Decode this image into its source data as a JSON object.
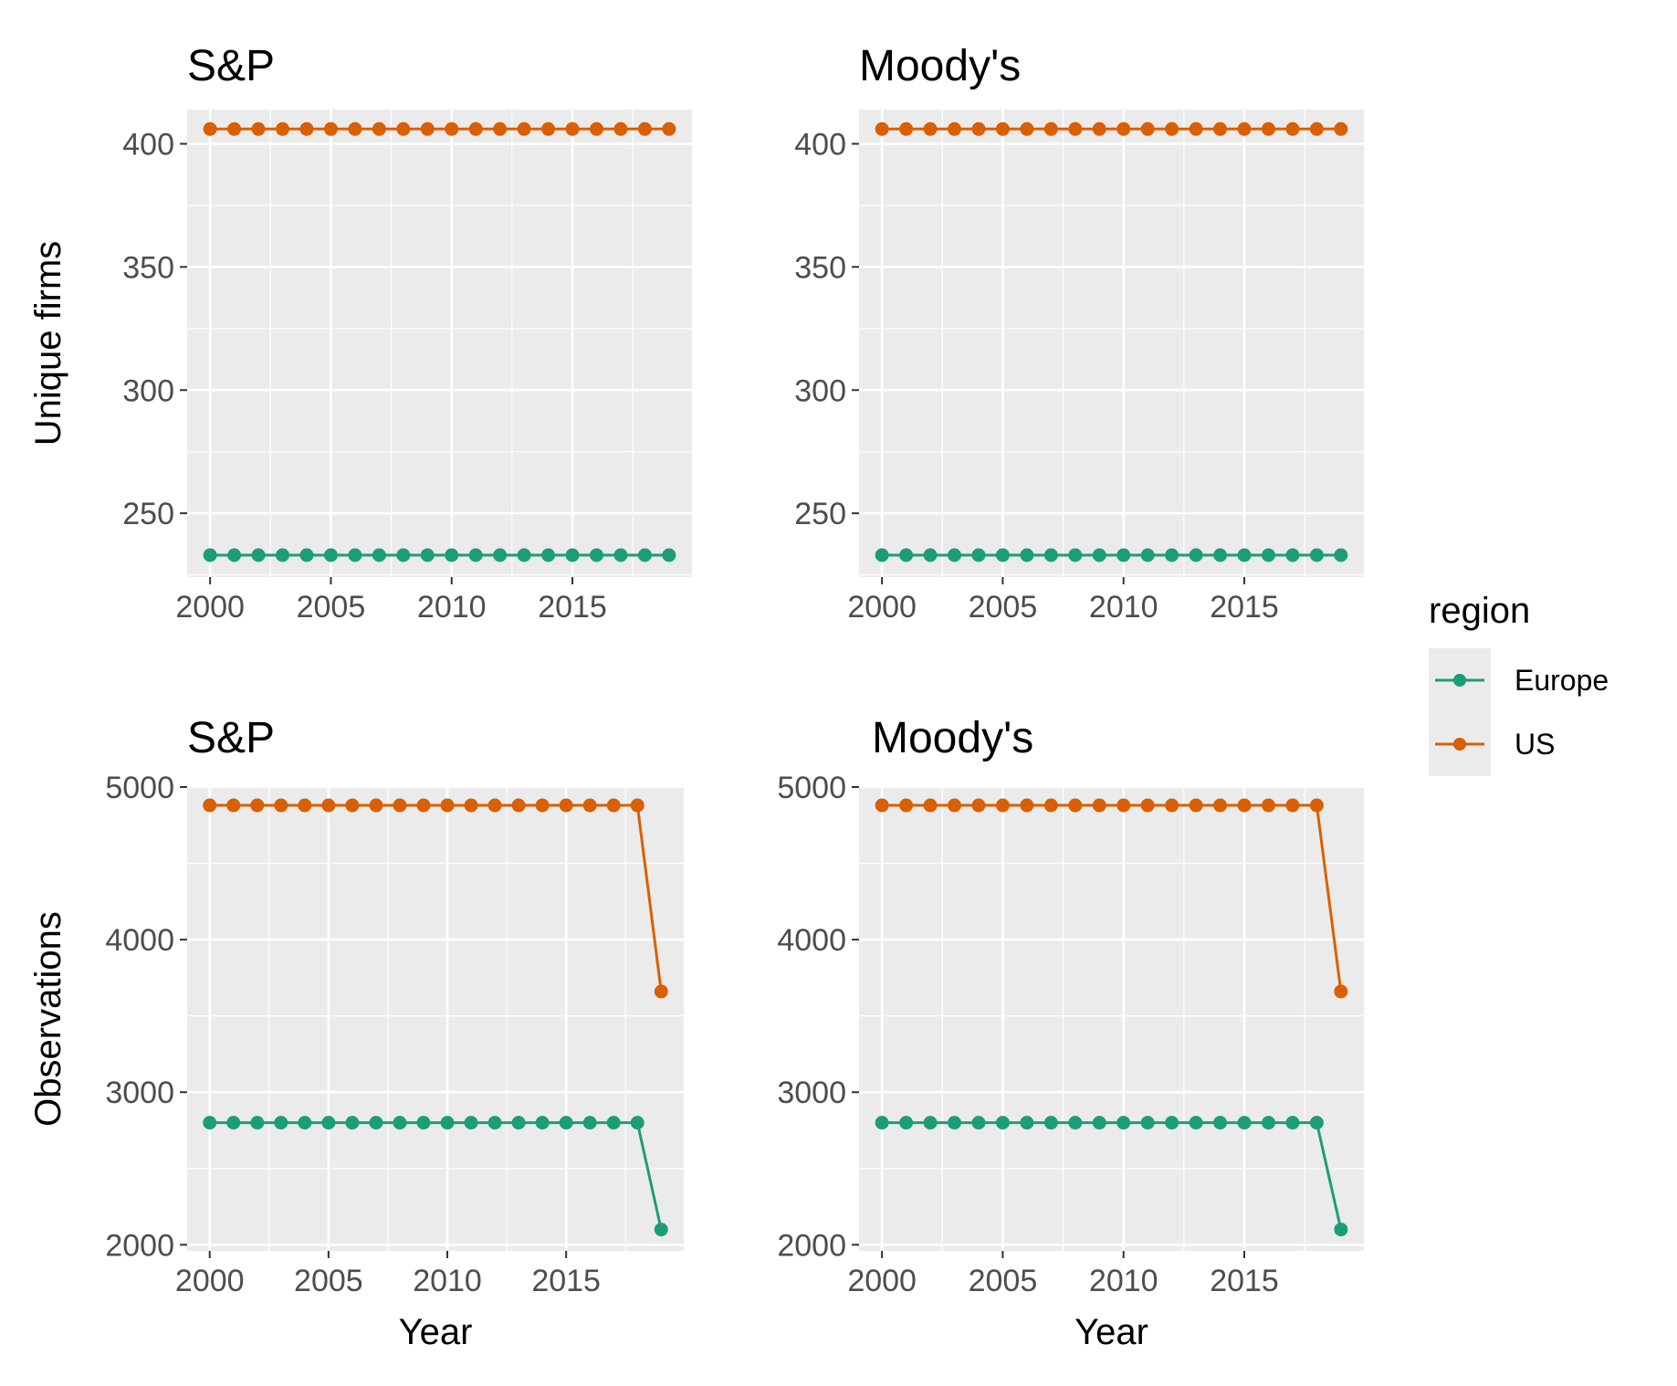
{
  "legend": {
    "title": "region",
    "entries": [
      {
        "label": "Europe",
        "color": "#1B9E77"
      },
      {
        "label": "US",
        "color": "#D95F02"
      }
    ]
  },
  "chart_data": [
    {
      "type": "line",
      "title": "S&P",
      "ylabel": "Unique firms",
      "xlabel": "",
      "x": [
        2000,
        2001,
        2002,
        2003,
        2004,
        2005,
        2006,
        2007,
        2008,
        2009,
        2010,
        2011,
        2012,
        2013,
        2014,
        2015,
        2016,
        2017,
        2018,
        2019
      ],
      "xticks": [
        2000,
        2005,
        2010,
        2015
      ],
      "yticks": [
        250,
        300,
        350,
        400
      ],
      "xlim": [
        1999.05,
        2019.95
      ],
      "ylim": [
        224.1,
        413.9
      ],
      "series": [
        {
          "name": "Europe",
          "color": "#1B9E77",
          "values": [
            233,
            233,
            233,
            233,
            233,
            233,
            233,
            233,
            233,
            233,
            233,
            233,
            233,
            233,
            233,
            233,
            233,
            233,
            233,
            233
          ]
        },
        {
          "name": "US",
          "color": "#D95F02",
          "values": [
            406,
            406,
            406,
            406,
            406,
            406,
            406,
            406,
            406,
            406,
            406,
            406,
            406,
            406,
            406,
            406,
            406,
            406,
            406,
            406
          ]
        }
      ]
    },
    {
      "type": "line",
      "title": "Moody's",
      "ylabel": "",
      "xlabel": "",
      "x": [
        2000,
        2001,
        2002,
        2003,
        2004,
        2005,
        2006,
        2007,
        2008,
        2009,
        2010,
        2011,
        2012,
        2013,
        2014,
        2015,
        2016,
        2017,
        2018,
        2019
      ],
      "xticks": [
        2000,
        2005,
        2010,
        2015
      ],
      "yticks": [
        250,
        300,
        350,
        400
      ],
      "xlim": [
        1999.05,
        2019.95
      ],
      "ylim": [
        224.1,
        413.9
      ],
      "series": [
        {
          "name": "Europe",
          "color": "#1B9E77",
          "values": [
            233,
            233,
            233,
            233,
            233,
            233,
            233,
            233,
            233,
            233,
            233,
            233,
            233,
            233,
            233,
            233,
            233,
            233,
            233,
            233
          ]
        },
        {
          "name": "US",
          "color": "#D95F02",
          "values": [
            406,
            406,
            406,
            406,
            406,
            406,
            406,
            406,
            406,
            406,
            406,
            406,
            406,
            406,
            406,
            406,
            406,
            406,
            406,
            406
          ]
        }
      ]
    },
    {
      "type": "line",
      "title": "S&P",
      "ylabel": "Observations",
      "xlabel": "Year",
      "x": [
        2000,
        2001,
        2002,
        2003,
        2004,
        2005,
        2006,
        2007,
        2008,
        2009,
        2010,
        2011,
        2012,
        2013,
        2014,
        2015,
        2016,
        2017,
        2018,
        2019
      ],
      "xticks": [
        2000,
        2005,
        2010,
        2015
      ],
      "yticks": [
        2000,
        3000,
        4000,
        5000
      ],
      "xlim": [
        1999.05,
        2019.95
      ],
      "ylim": [
        1960,
        5000
      ],
      "series": [
        {
          "name": "Europe",
          "color": "#1B9E77",
          "values": [
            2800,
            2800,
            2800,
            2800,
            2800,
            2800,
            2800,
            2800,
            2800,
            2800,
            2800,
            2800,
            2800,
            2800,
            2800,
            2800,
            2800,
            2800,
            2800,
            2100
          ]
        },
        {
          "name": "US",
          "color": "#D95F02",
          "values": [
            4880,
            4880,
            4880,
            4880,
            4880,
            4880,
            4880,
            4880,
            4880,
            4880,
            4880,
            4880,
            4880,
            4880,
            4880,
            4880,
            4880,
            4880,
            4880,
            3660
          ]
        }
      ]
    },
    {
      "type": "line",
      "title": "Moody's",
      "ylabel": "",
      "xlabel": "Year",
      "x": [
        2000,
        2001,
        2002,
        2003,
        2004,
        2005,
        2006,
        2007,
        2008,
        2009,
        2010,
        2011,
        2012,
        2013,
        2014,
        2015,
        2016,
        2017,
        2018,
        2019
      ],
      "xticks": [
        2000,
        2005,
        2010,
        2015
      ],
      "yticks": [
        2000,
        3000,
        4000,
        5000
      ],
      "xlim": [
        1999.05,
        2019.95
      ],
      "ylim": [
        1960,
        5000
      ],
      "series": [
        {
          "name": "Europe",
          "color": "#1B9E77",
          "values": [
            2800,
            2800,
            2800,
            2800,
            2800,
            2800,
            2800,
            2800,
            2800,
            2800,
            2800,
            2800,
            2800,
            2800,
            2800,
            2800,
            2800,
            2800,
            2800,
            2100
          ]
        },
        {
          "name": "US",
          "color": "#D95F02",
          "values": [
            4880,
            4880,
            4880,
            4880,
            4880,
            4880,
            4880,
            4880,
            4880,
            4880,
            4880,
            4880,
            4880,
            4880,
            4880,
            4880,
            4880,
            4880,
            4880,
            3660
          ]
        }
      ]
    }
  ]
}
